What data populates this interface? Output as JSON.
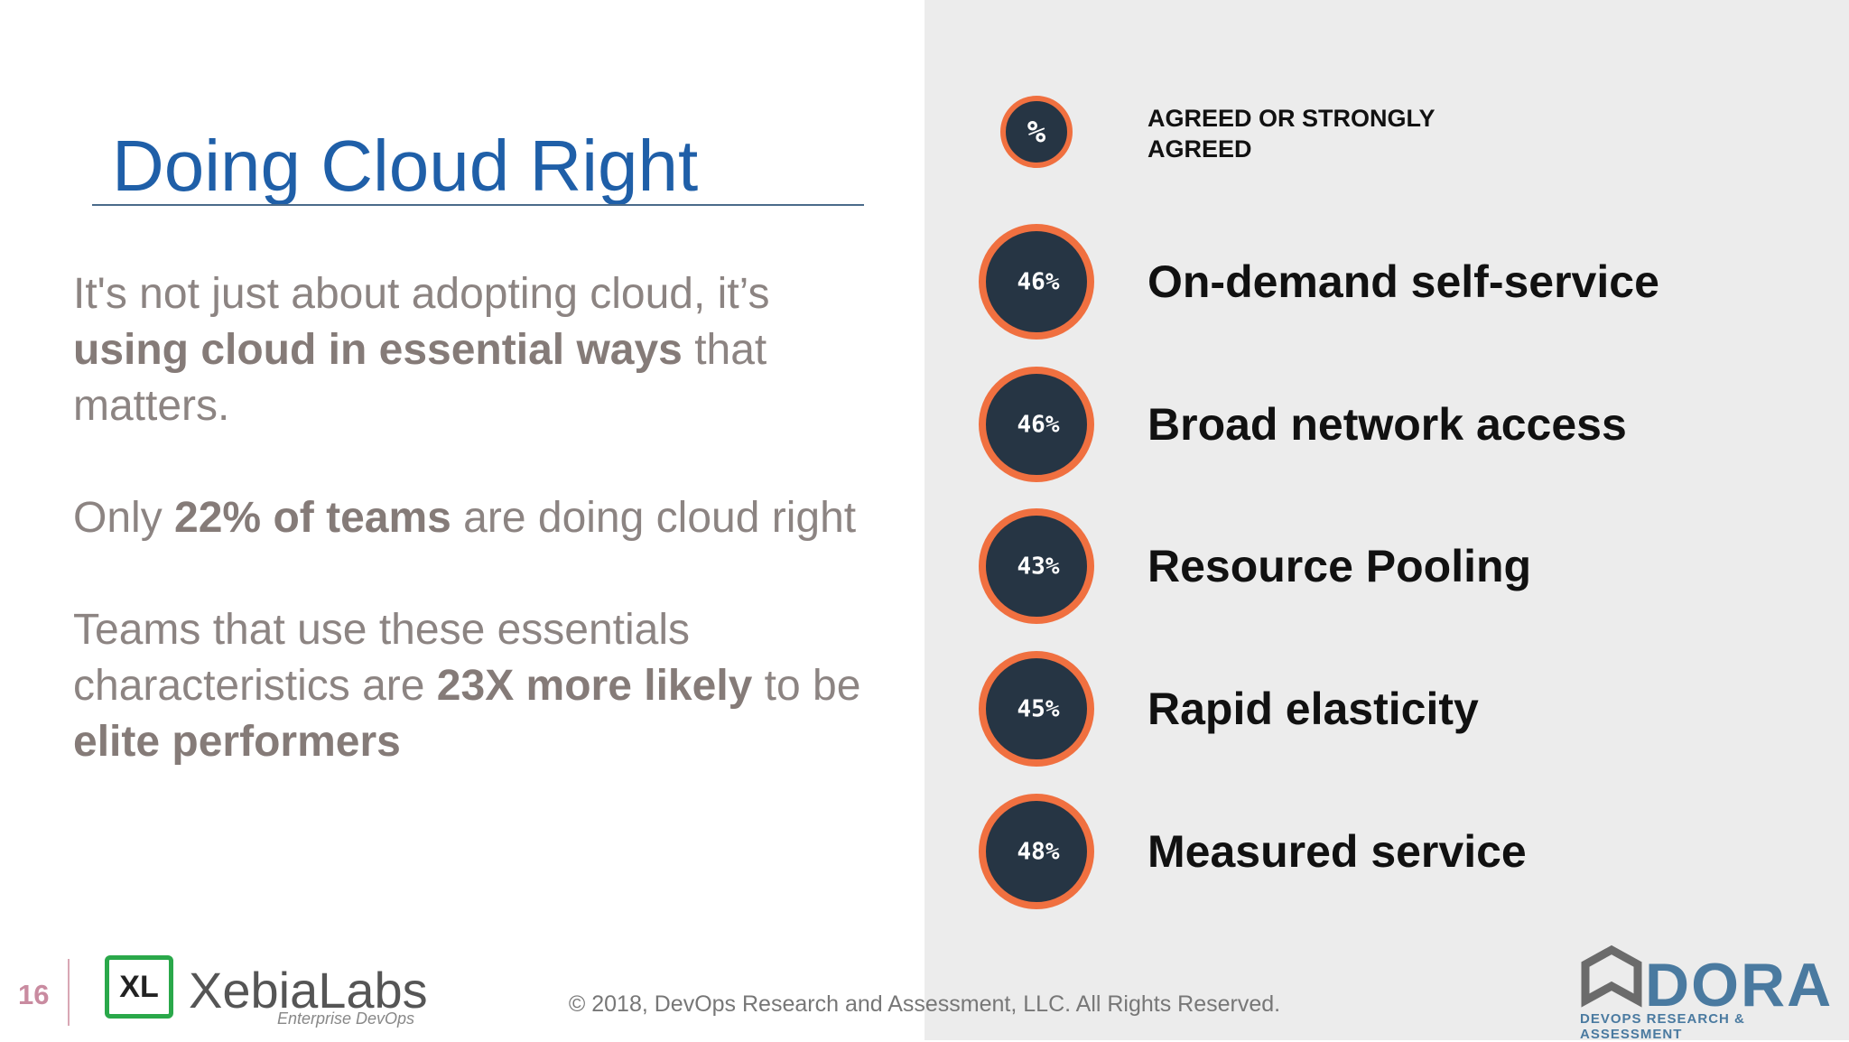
{
  "slide": {
    "title": "Doing Cloud Right",
    "body": [
      [
        {
          "text": "It's not just about adopting cloud, it’s "
        },
        {
          "text": "using cloud in essential ways",
          "bold": true
        },
        {
          "text": " that matters."
        }
      ],
      [
        {
          "text": "Only "
        },
        {
          "text": "22% of teams",
          "bold": true
        },
        {
          "text": " are doing cloud right"
        }
      ],
      [
        {
          "text": "Teams that use these essentials characteristics are "
        },
        {
          "text": "23X more likely",
          "bold": true
        },
        {
          "text": " to be "
        },
        {
          "text": "elite performers",
          "bold": true
        }
      ]
    ],
    "legend": {
      "symbol": "%",
      "label": "AGREED OR STRONGLY AGREED"
    },
    "items": [
      {
        "value": "46%",
        "label": "On-demand self-service"
      },
      {
        "value": "46%",
        "label": "Broad network access"
      },
      {
        "value": "43%",
        "label": "Resource Pooling"
      },
      {
        "value": "45%",
        "label": "Rapid elasticity"
      },
      {
        "value": "48%",
        "label": "Measured service"
      }
    ],
    "page_number": "16",
    "footer": {
      "copyright": "© 2018, DevOps Research and Assessment, LLC. All Rights Reserved.",
      "logo_left_icon": "XL",
      "logo_left": "XebiaLabs",
      "logo_left_tagline": "Enterprise DevOps",
      "logo_right": "DORA",
      "logo_right_tagline": "DEVOPS RESEARCH & ASSESSMENT"
    }
  }
}
